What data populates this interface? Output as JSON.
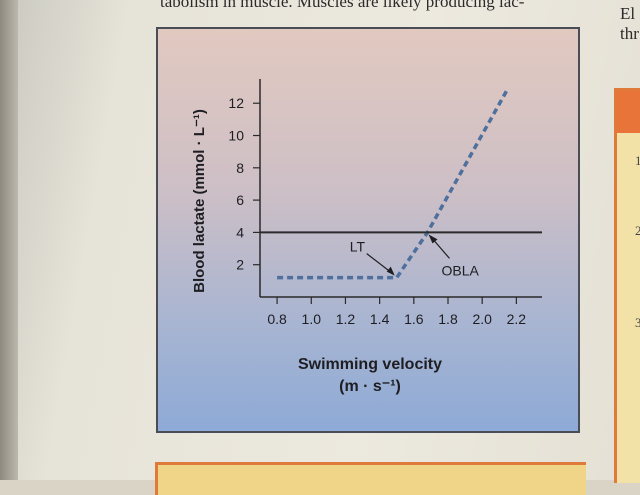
{
  "page": {
    "top_text": "tabolism in muscle. Muscles are likely producing lac-",
    "right_text": [
      "El",
      "thr"
    ],
    "right_box_numbers": [
      "1",
      "2",
      "3"
    ]
  },
  "chart_data": {
    "type": "line",
    "title": "",
    "xlabel": "Swimming velocity",
    "xlabel_units": "(m · s⁻¹)",
    "ylabel": "Blood lactate (mmol · L⁻¹)",
    "x_ticks": [
      "0.8",
      "1.0",
      "1.2",
      "1.4",
      "1.6",
      "1.8",
      "2.0",
      "2.2"
    ],
    "y_ticks": [
      "2",
      "4",
      "6",
      "8",
      "10",
      "12"
    ],
    "xlim": [
      0.7,
      2.35
    ],
    "ylim": [
      0,
      13.5
    ],
    "grid": false,
    "series": [
      {
        "style": "dashed",
        "color": "#4f6f9c",
        "points": [
          [
            0.8,
            1.2
          ],
          [
            1.5,
            1.2
          ],
          [
            1.68,
            4.0
          ],
          [
            2.15,
            12.9
          ]
        ]
      },
      {
        "style": "solid",
        "color": "#2b2b2b",
        "points": [
          [
            0.7,
            4.0
          ],
          [
            2.35,
            4.0
          ]
        ]
      }
    ],
    "annotations": [
      {
        "text": "LT",
        "x": 1.5,
        "y": 1.2
      },
      {
        "text": "OBLA",
        "x": 1.68,
        "y": 4.0
      }
    ]
  }
}
